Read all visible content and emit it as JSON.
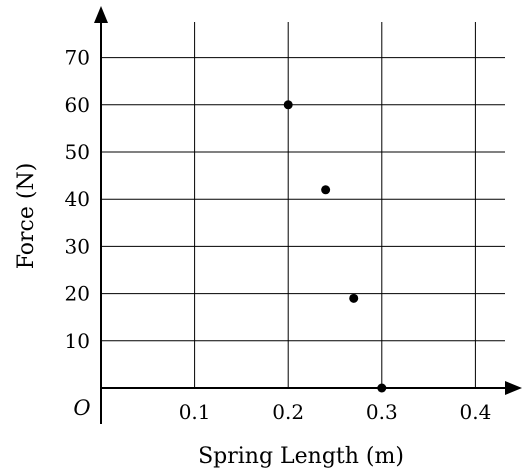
{
  "chart_data": {
    "type": "scatter",
    "title": "",
    "xlabel": "Spring Length (m)",
    "ylabel": "Force (N)",
    "origin_label": "O",
    "xlim": [
      0,
      0.44
    ],
    "ylim": [
      0,
      76
    ],
    "x_ticks": [
      0.1,
      0.2,
      0.3,
      0.4
    ],
    "x_tick_labels": [
      "0.1",
      "0.2",
      "0.3",
      "0.4"
    ],
    "y_ticks": [
      10,
      20,
      30,
      40,
      50,
      60,
      70
    ],
    "y_tick_labels": [
      "10",
      "20",
      "30",
      "40",
      "50",
      "60",
      "70"
    ],
    "grid": true,
    "series": [
      {
        "x": [
          0.2,
          0.24,
          0.27,
          0.3
        ],
        "y": [
          60,
          42,
          19,
          0
        ]
      }
    ]
  }
}
